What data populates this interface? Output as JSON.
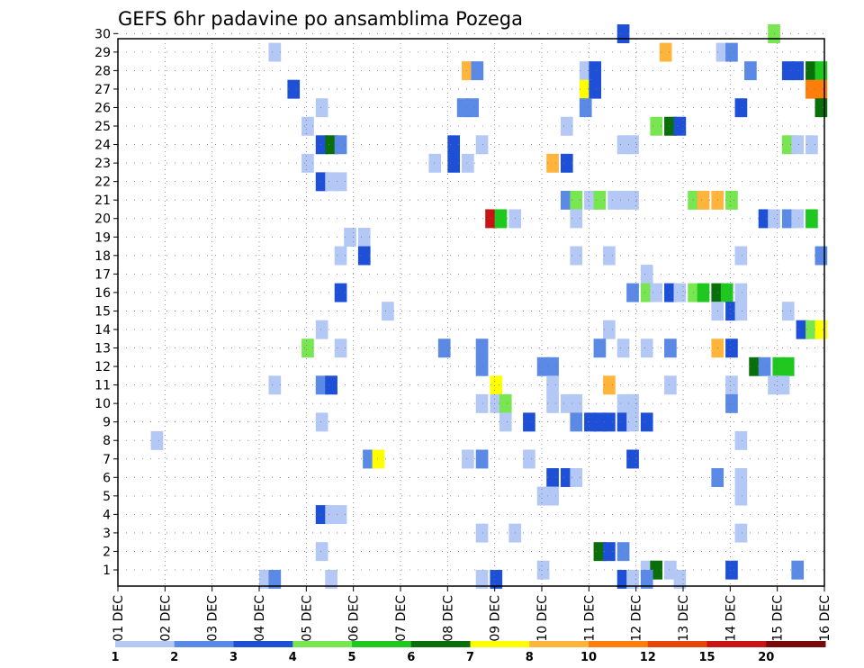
{
  "chart_data": {
    "type": "heatmap",
    "title": "GEFS 6hr padavine po ansamblima Pozega",
    "xlabel": "",
    "ylabel": "",
    "x_ticks": [
      "01 DEC",
      "02 DEC",
      "03 DEC",
      "04 DEC",
      "05 DEC",
      "06 DEC",
      "07 DEC",
      "08 DEC",
      "09 DEC",
      "10 DEC",
      "11 DEC",
      "12 DEC",
      "13 DEC",
      "14 DEC",
      "15 DEC",
      "16 DEC"
    ],
    "y_ticks": [
      "1",
      "2",
      "3",
      "4",
      "5",
      "6",
      "7",
      "8",
      "9",
      "10",
      "11",
      "12",
      "13",
      "14",
      "15",
      "16",
      "17",
      "18",
      "19",
      "20",
      "21",
      "22",
      "23",
      "24",
      "25",
      "26",
      "27",
      "28",
      "29",
      "30"
    ],
    "grid": true,
    "legend": {
      "placement": "bottom",
      "levels": [
        "1",
        "2",
        "3",
        "4",
        "5",
        "6",
        "7",
        "8",
        "10",
        "12",
        "15",
        "20"
      ],
      "colors": [
        "#b4c8f5",
        "#5a8ae6",
        "#1e50d7",
        "#78e650",
        "#1ec81e",
        "#0a6e0a",
        "#ffff00",
        "#ffb43c",
        "#ff7d0a",
        "#e6460a",
        "#c81414",
        "#780a0a"
      ]
    },
    "cells": [
      {
        "t": 11.6,
        "m": 30,
        "c": 2
      },
      {
        "t": 14.8,
        "m": 30,
        "c": 3
      },
      {
        "t": 4.2,
        "m": 29,
        "c": 0
      },
      {
        "t": 12.5,
        "m": 29,
        "c": 7
      },
      {
        "t": 13.7,
        "m": 29,
        "c": 0
      },
      {
        "t": 13.9,
        "m": 29,
        "c": 1
      },
      {
        "t": 8.3,
        "m": 28,
        "c": 7
      },
      {
        "t": 8.5,
        "m": 28,
        "c": 1
      },
      {
        "t": 10.8,
        "m": 28,
        "c": 0
      },
      {
        "t": 11.0,
        "m": 28,
        "c": 2
      },
      {
        "t": 14.3,
        "m": 28,
        "c": 1
      },
      {
        "t": 15.1,
        "m": 28,
        "c": 2
      },
      {
        "t": 15.3,
        "m": 28,
        "c": 2
      },
      {
        "t": 15.6,
        "m": 28,
        "c": 5
      },
      {
        "t": 15.8,
        "m": 28,
        "c": 4
      },
      {
        "t": 4.6,
        "m": 27,
        "c": 2
      },
      {
        "t": 10.8,
        "m": 27,
        "c": 6
      },
      {
        "t": 11.0,
        "m": 27,
        "c": 2
      },
      {
        "t": 15.6,
        "m": 27,
        "c": 8
      },
      {
        "t": 15.8,
        "m": 27,
        "c": 8
      },
      {
        "t": 5.2,
        "m": 26,
        "c": 0
      },
      {
        "t": 8.2,
        "m": 26,
        "c": 1
      },
      {
        "t": 8.4,
        "m": 26,
        "c": 1
      },
      {
        "t": 10.8,
        "m": 26,
        "c": 1
      },
      {
        "t": 14.1,
        "m": 26,
        "c": 2
      },
      {
        "t": 15.8,
        "m": 26,
        "c": 5
      },
      {
        "t": 4.9,
        "m": 25,
        "c": 0
      },
      {
        "t": 10.4,
        "m": 25,
        "c": 0
      },
      {
        "t": 12.3,
        "m": 25,
        "c": 3
      },
      {
        "t": 12.6,
        "m": 25,
        "c": 5
      },
      {
        "t": 12.8,
        "m": 25,
        "c": 2
      },
      {
        "t": 5.2,
        "m": 24,
        "c": 2
      },
      {
        "t": 5.4,
        "m": 24,
        "c": 5
      },
      {
        "t": 5.6,
        "m": 24,
        "c": 1
      },
      {
        "t": 8.0,
        "m": 24,
        "c": 2
      },
      {
        "t": 8.6,
        "m": 24,
        "c": 0
      },
      {
        "t": 11.6,
        "m": 24,
        "c": 0
      },
      {
        "t": 11.8,
        "m": 24,
        "c": 0
      },
      {
        "t": 15.1,
        "m": 24,
        "c": 3
      },
      {
        "t": 15.3,
        "m": 24,
        "c": 0
      },
      {
        "t": 15.6,
        "m": 24,
        "c": 0
      },
      {
        "t": 4.9,
        "m": 23,
        "c": 0
      },
      {
        "t": 7.6,
        "m": 23,
        "c": 0
      },
      {
        "t": 8.0,
        "m": 23,
        "c": 2
      },
      {
        "t": 8.3,
        "m": 23,
        "c": 0
      },
      {
        "t": 10.1,
        "m": 23,
        "c": 7
      },
      {
        "t": 10.4,
        "m": 23,
        "c": 2
      },
      {
        "t": 5.2,
        "m": 22,
        "c": 2
      },
      {
        "t": 5.4,
        "m": 22,
        "c": 0
      },
      {
        "t": 5.6,
        "m": 22,
        "c": 0
      },
      {
        "t": 10.4,
        "m": 21,
        "c": 1
      },
      {
        "t": 10.6,
        "m": 21,
        "c": 3
      },
      {
        "t": 10.9,
        "m": 21,
        "c": 0
      },
      {
        "t": 11.1,
        "m": 21,
        "c": 3
      },
      {
        "t": 11.4,
        "m": 21,
        "c": 0
      },
      {
        "t": 11.6,
        "m": 21,
        "c": 0
      },
      {
        "t": 11.8,
        "m": 21,
        "c": 0
      },
      {
        "t": 13.1,
        "m": 21,
        "c": 3
      },
      {
        "t": 13.3,
        "m": 21,
        "c": 7
      },
      {
        "t": 13.6,
        "m": 21,
        "c": 7
      },
      {
        "t": 13.9,
        "m": 21,
        "c": 3
      },
      {
        "t": 8.8,
        "m": 20,
        "c": 10
      },
      {
        "t": 9.0,
        "m": 20,
        "c": 4
      },
      {
        "t": 9.3,
        "m": 20,
        "c": 0
      },
      {
        "t": 10.6,
        "m": 20,
        "c": 0
      },
      {
        "t": 14.6,
        "m": 20,
        "c": 2
      },
      {
        "t": 14.8,
        "m": 20,
        "c": 0
      },
      {
        "t": 15.1,
        "m": 20,
        "c": 1
      },
      {
        "t": 15.3,
        "m": 20,
        "c": 0
      },
      {
        "t": 15.6,
        "m": 20,
        "c": 4
      },
      {
        "t": 5.8,
        "m": 19,
        "c": 0
      },
      {
        "t": 6.1,
        "m": 19,
        "c": 0
      },
      {
        "t": 5.6,
        "m": 18,
        "c": 0
      },
      {
        "t": 6.1,
        "m": 18,
        "c": 2
      },
      {
        "t": 10.6,
        "m": 18,
        "c": 0
      },
      {
        "t": 11.3,
        "m": 18,
        "c": 0
      },
      {
        "t": 14.1,
        "m": 18,
        "c": 0
      },
      {
        "t": 15.8,
        "m": 18,
        "c": 1
      },
      {
        "t": 12.1,
        "m": 17,
        "c": 0
      },
      {
        "t": 5.6,
        "m": 16,
        "c": 2
      },
      {
        "t": 11.8,
        "m": 16,
        "c": 1
      },
      {
        "t": 12.1,
        "m": 16,
        "c": 3
      },
      {
        "t": 12.3,
        "m": 16,
        "c": 0
      },
      {
        "t": 12.6,
        "m": 16,
        "c": 2
      },
      {
        "t": 12.8,
        "m": 16,
        "c": 0
      },
      {
        "t": 13.1,
        "m": 16,
        "c": 3
      },
      {
        "t": 13.3,
        "m": 16,
        "c": 4
      },
      {
        "t": 13.6,
        "m": 16,
        "c": 5
      },
      {
        "t": 13.8,
        "m": 16,
        "c": 4
      },
      {
        "t": 14.1,
        "m": 16,
        "c": 0
      },
      {
        "t": 6.6,
        "m": 15,
        "c": 0
      },
      {
        "t": 13.6,
        "m": 15,
        "c": 0
      },
      {
        "t": 13.9,
        "m": 15,
        "c": 2
      },
      {
        "t": 14.1,
        "m": 15,
        "c": 0
      },
      {
        "t": 15.1,
        "m": 15,
        "c": 0
      },
      {
        "t": 5.2,
        "m": 14,
        "c": 0
      },
      {
        "t": 11.3,
        "m": 14,
        "c": 0
      },
      {
        "t": 15.4,
        "m": 14,
        "c": 2
      },
      {
        "t": 15.6,
        "m": 14,
        "c": 3
      },
      {
        "t": 15.8,
        "m": 14,
        "c": 6
      },
      {
        "t": 4.9,
        "m": 13,
        "c": 3
      },
      {
        "t": 5.6,
        "m": 13,
        "c": 0
      },
      {
        "t": 7.8,
        "m": 13,
        "c": 1
      },
      {
        "t": 8.6,
        "m": 13,
        "c": 1
      },
      {
        "t": 11.1,
        "m": 13,
        "c": 1
      },
      {
        "t": 11.6,
        "m": 13,
        "c": 0
      },
      {
        "t": 12.1,
        "m": 13,
        "c": 0
      },
      {
        "t": 12.6,
        "m": 13,
        "c": 1
      },
      {
        "t": 13.6,
        "m": 13,
        "c": 7
      },
      {
        "t": 13.9,
        "m": 13,
        "c": 2
      },
      {
        "t": 8.6,
        "m": 12,
        "c": 1
      },
      {
        "t": 9.9,
        "m": 12,
        "c": 1
      },
      {
        "t": 10.1,
        "m": 12,
        "c": 1
      },
      {
        "t": 14.4,
        "m": 12,
        "c": 5
      },
      {
        "t": 14.6,
        "m": 12,
        "c": 1
      },
      {
        "t": 14.9,
        "m": 12,
        "c": 4
      },
      {
        "t": 15.1,
        "m": 12,
        "c": 4
      },
      {
        "t": 4.2,
        "m": 11,
        "c": 0
      },
      {
        "t": 5.2,
        "m": 11,
        "c": 1
      },
      {
        "t": 5.4,
        "m": 11,
        "c": 2
      },
      {
        "t": 8.9,
        "m": 11,
        "c": 6
      },
      {
        "t": 10.1,
        "m": 11,
        "c": 0
      },
      {
        "t": 11.3,
        "m": 11,
        "c": 7
      },
      {
        "t": 12.6,
        "m": 11,
        "c": 0
      },
      {
        "t": 13.9,
        "m": 11,
        "c": 0
      },
      {
        "t": 14.8,
        "m": 11,
        "c": 0
      },
      {
        "t": 15.0,
        "m": 11,
        "c": 0
      },
      {
        "t": 8.6,
        "m": 10,
        "c": 0
      },
      {
        "t": 8.9,
        "m": 10,
        "c": 0
      },
      {
        "t": 9.1,
        "m": 10,
        "c": 3
      },
      {
        "t": 10.1,
        "m": 10,
        "c": 0
      },
      {
        "t": 10.4,
        "m": 10,
        "c": 0
      },
      {
        "t": 10.6,
        "m": 10,
        "c": 0
      },
      {
        "t": 11.6,
        "m": 10,
        "c": 0
      },
      {
        "t": 11.8,
        "m": 10,
        "c": 0
      },
      {
        "t": 13.9,
        "m": 10,
        "c": 1
      },
      {
        "t": 5.2,
        "m": 9,
        "c": 0
      },
      {
        "t": 9.1,
        "m": 9,
        "c": 0
      },
      {
        "t": 9.6,
        "m": 9,
        "c": 2
      },
      {
        "t": 10.6,
        "m": 9,
        "c": 1
      },
      {
        "t": 10.9,
        "m": 9,
        "c": 2
      },
      {
        "t": 11.1,
        "m": 9,
        "c": 2
      },
      {
        "t": 11.3,
        "m": 9,
        "c": 2
      },
      {
        "t": 11.6,
        "m": 9,
        "c": 2
      },
      {
        "t": 11.8,
        "m": 9,
        "c": 0
      },
      {
        "t": 12.1,
        "m": 9,
        "c": 2
      },
      {
        "t": 1.7,
        "m": 8,
        "c": 0
      },
      {
        "t": 14.1,
        "m": 8,
        "c": 0
      },
      {
        "t": 6.2,
        "m": 7,
        "c": 1
      },
      {
        "t": 6.4,
        "m": 7,
        "c": 6
      },
      {
        "t": 8.3,
        "m": 7,
        "c": 0
      },
      {
        "t": 8.6,
        "m": 7,
        "c": 1
      },
      {
        "t": 9.6,
        "m": 7,
        "c": 0
      },
      {
        "t": 11.8,
        "m": 7,
        "c": 2
      },
      {
        "t": 10.1,
        "m": 6,
        "c": 2
      },
      {
        "t": 10.4,
        "m": 6,
        "c": 2
      },
      {
        "t": 10.6,
        "m": 6,
        "c": 0
      },
      {
        "t": 13.6,
        "m": 6,
        "c": 1
      },
      {
        "t": 14.1,
        "m": 6,
        "c": 0
      },
      {
        "t": 9.9,
        "m": 5,
        "c": 0
      },
      {
        "t": 10.1,
        "m": 5,
        "c": 0
      },
      {
        "t": 14.1,
        "m": 5,
        "c": 0
      },
      {
        "t": 5.2,
        "m": 4,
        "c": 2
      },
      {
        "t": 5.4,
        "m": 4,
        "c": 0
      },
      {
        "t": 5.6,
        "m": 4,
        "c": 0
      },
      {
        "t": 8.6,
        "m": 3,
        "c": 0
      },
      {
        "t": 9.3,
        "m": 3,
        "c": 0
      },
      {
        "t": 14.1,
        "m": 3,
        "c": 0
      },
      {
        "t": 5.2,
        "m": 2,
        "c": 0
      },
      {
        "t": 11.1,
        "m": 2,
        "c": 5
      },
      {
        "t": 11.3,
        "m": 2,
        "c": 2
      },
      {
        "t": 11.6,
        "m": 2,
        "c": 1
      },
      {
        "t": 9.9,
        "m": 1,
        "c": 0
      },
      {
        "t": 12.1,
        "m": 1,
        "c": 0
      },
      {
        "t": 12.3,
        "m": 1,
        "c": 5
      },
      {
        "t": 12.6,
        "m": 1,
        "c": 0
      },
      {
        "t": 13.9,
        "m": 1,
        "c": 2
      },
      {
        "t": 15.3,
        "m": 1,
        "c": 1
      },
      {
        "t": 4.0,
        "m": 0.5,
        "c": 0
      },
      {
        "t": 4.2,
        "m": 0.5,
        "c": 1
      },
      {
        "t": 5.4,
        "m": 0.5,
        "c": 0
      },
      {
        "t": 8.6,
        "m": 0.5,
        "c": 0
      },
      {
        "t": 8.9,
        "m": 0.5,
        "c": 2
      },
      {
        "t": 11.6,
        "m": 0.5,
        "c": 2
      },
      {
        "t": 11.8,
        "m": 0.5,
        "c": 0
      },
      {
        "t": 12.1,
        "m": 0.5,
        "c": 1
      },
      {
        "t": 12.8,
        "m": 0.5,
        "c": 0
      }
    ]
  }
}
